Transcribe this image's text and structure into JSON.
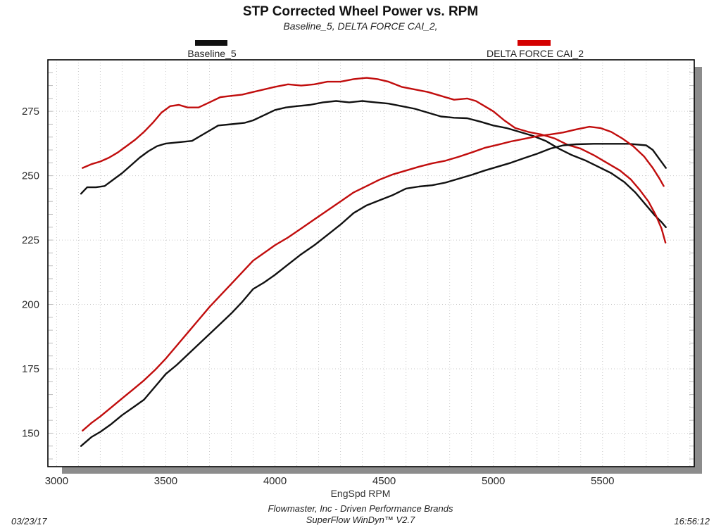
{
  "header": {
    "title": "STP Corrected Wheel Power vs. RPM",
    "subtitle": "Baseline_5, DELTA FORCE CAI_2,"
  },
  "legend": {
    "baseline": {
      "label": "Baseline_5",
      "color": "#111111"
    },
    "cai": {
      "label": "DELTA FORCE CAI_2",
      "color": "#d40000"
    }
  },
  "footer": {
    "brand_line": "Flowmaster, Inc - Driven Performance Brands",
    "software_line": "SuperFlow WinDyn™ V2.7",
    "date": "03/23/17",
    "time": "16:56:12"
  },
  "chart_data": {
    "type": "line",
    "title": "STP Corrected Wheel Power vs. RPM",
    "subtitle": "Baseline_5, DELTA FORCE CAI_2,",
    "xlabel": "EngSpd RPM",
    "ylabel": "",
    "xlim": [
      2960,
      5920
    ],
    "ylim": [
      137,
      295
    ],
    "x_ticks": [
      3000,
      3500,
      4000,
      4500,
      5000,
      5500
    ],
    "y_ticks": [
      150,
      175,
      200,
      225,
      250,
      275
    ],
    "grid": "dotted minor grid: vertical every 100 RPM, horizontal every 25; small edge ticks every 5 units",
    "legend_position": "top, outside plot",
    "frame": "black border with gray drop shadow lower-right",
    "colors": {
      "baseline": "#111111",
      "cai": "#c10d0d",
      "grid": "#c9c9c9",
      "shadow": "#8c8c8c"
    },
    "series": [
      {
        "name": "Baseline_5 torque-curve (upper black)",
        "color": "#111111",
        "points": [
          [
            3112,
            243
          ],
          [
            3140,
            245.5
          ],
          [
            3180,
            245.5
          ],
          [
            3220,
            246
          ],
          [
            3260,
            248.5
          ],
          [
            3300,
            251
          ],
          [
            3340,
            254
          ],
          [
            3380,
            257
          ],
          [
            3420,
            259.5
          ],
          [
            3460,
            261.5
          ],
          [
            3500,
            262.5
          ],
          [
            3560,
            263
          ],
          [
            3620,
            263.5
          ],
          [
            3660,
            265.5
          ],
          [
            3700,
            267.5
          ],
          [
            3740,
            269.5
          ],
          [
            3800,
            270
          ],
          [
            3860,
            270.5
          ],
          [
            3900,
            271.5
          ],
          [
            3950,
            273.5
          ],
          [
            4000,
            275.5
          ],
          [
            4050,
            276.5
          ],
          [
            4100,
            277
          ],
          [
            4160,
            277.5
          ],
          [
            4220,
            278.5
          ],
          [
            4280,
            279
          ],
          [
            4340,
            278.5
          ],
          [
            4400,
            279
          ],
          [
            4460,
            278.5
          ],
          [
            4520,
            278
          ],
          [
            4580,
            277
          ],
          [
            4640,
            276
          ],
          [
            4700,
            274.5
          ],
          [
            4760,
            273
          ],
          [
            4820,
            272.5
          ],
          [
            4880,
            272.3
          ],
          [
            4940,
            271
          ],
          [
            5000,
            269.5
          ],
          [
            5060,
            268.5
          ],
          [
            5120,
            267
          ],
          [
            5180,
            265.5
          ],
          [
            5240,
            263.5
          ],
          [
            5300,
            260.5
          ],
          [
            5360,
            258
          ],
          [
            5420,
            256
          ],
          [
            5480,
            253.5
          ],
          [
            5540,
            251
          ],
          [
            5600,
            247.5
          ],
          [
            5650,
            243.5
          ],
          [
            5700,
            238.5
          ],
          [
            5740,
            234.5
          ],
          [
            5770,
            232
          ],
          [
            5790,
            230
          ]
        ]
      },
      {
        "name": "DELTA FORCE CAI_2 torque-curve (upper red)",
        "color": "#c10d0d",
        "points": [
          [
            3119,
            253
          ],
          [
            3160,
            254.5
          ],
          [
            3200,
            255.5
          ],
          [
            3240,
            257
          ],
          [
            3280,
            259
          ],
          [
            3320,
            261.5
          ],
          [
            3360,
            264
          ],
          [
            3400,
            267
          ],
          [
            3440,
            270.5
          ],
          [
            3480,
            274.5
          ],
          [
            3520,
            277
          ],
          [
            3560,
            277.5
          ],
          [
            3600,
            276.5
          ],
          [
            3650,
            276.5
          ],
          [
            3700,
            278.5
          ],
          [
            3750,
            280.5
          ],
          [
            3800,
            281
          ],
          [
            3850,
            281.5
          ],
          [
            3900,
            282.5
          ],
          [
            3950,
            283.5
          ],
          [
            4000,
            284.5
          ],
          [
            4060,
            285.5
          ],
          [
            4120,
            285
          ],
          [
            4180,
            285.5
          ],
          [
            4240,
            286.5
          ],
          [
            4300,
            286.5
          ],
          [
            4360,
            287.5
          ],
          [
            4420,
            288
          ],
          [
            4470,
            287.5
          ],
          [
            4520,
            286.5
          ],
          [
            4580,
            284.5
          ],
          [
            4640,
            283.5
          ],
          [
            4700,
            282.5
          ],
          [
            4760,
            281
          ],
          [
            4820,
            279.5
          ],
          [
            4880,
            280
          ],
          [
            4920,
            279
          ],
          [
            4960,
            277
          ],
          [
            5000,
            275
          ],
          [
            5050,
            271.5
          ],
          [
            5100,
            268.5
          ],
          [
            5160,
            267
          ],
          [
            5220,
            266
          ],
          [
            5280,
            264.5
          ],
          [
            5340,
            262
          ],
          [
            5400,
            260.5
          ],
          [
            5460,
            258
          ],
          [
            5520,
            255
          ],
          [
            5580,
            252
          ],
          [
            5630,
            248.5
          ],
          [
            5670,
            244.5
          ],
          [
            5710,
            240
          ],
          [
            5745,
            234.5
          ],
          [
            5770,
            229.5
          ],
          [
            5788,
            224
          ]
        ]
      },
      {
        "name": "Baseline_5 power-curve (lower black)",
        "color": "#111111",
        "points": [
          [
            3112,
            145
          ],
          [
            3160,
            148.5
          ],
          [
            3200,
            150.5
          ],
          [
            3250,
            153.5
          ],
          [
            3300,
            157
          ],
          [
            3350,
            160
          ],
          [
            3400,
            163
          ],
          [
            3450,
            168
          ],
          [
            3500,
            173
          ],
          [
            3550,
            176.5
          ],
          [
            3600,
            180.5
          ],
          [
            3650,
            184.5
          ],
          [
            3700,
            188.5
          ],
          [
            3750,
            192.5
          ],
          [
            3800,
            196.5
          ],
          [
            3850,
            201
          ],
          [
            3900,
            206
          ],
          [
            3950,
            208.5
          ],
          [
            4000,
            211.5
          ],
          [
            4060,
            215.5
          ],
          [
            4120,
            219.5
          ],
          [
            4180,
            223
          ],
          [
            4240,
            227
          ],
          [
            4300,
            231
          ],
          [
            4360,
            235.5
          ],
          [
            4420,
            238.5
          ],
          [
            4480,
            240.5
          ],
          [
            4540,
            242.5
          ],
          [
            4600,
            245
          ],
          [
            4660,
            245.8
          ],
          [
            4720,
            246.3
          ],
          [
            4780,
            247.3
          ],
          [
            4840,
            248.8
          ],
          [
            4900,
            250.3
          ],
          [
            4960,
            252
          ],
          [
            5020,
            253.5
          ],
          [
            5080,
            255
          ],
          [
            5140,
            256.8
          ],
          [
            5200,
            258.5
          ],
          [
            5260,
            260.5
          ],
          [
            5320,
            261.8
          ],
          [
            5380,
            262.2
          ],
          [
            5460,
            262.4
          ],
          [
            5540,
            262.4
          ],
          [
            5620,
            262.4
          ],
          [
            5700,
            261.8
          ],
          [
            5730,
            260
          ],
          [
            5760,
            256.5
          ],
          [
            5790,
            253
          ]
        ]
      },
      {
        "name": "DELTA FORCE CAI_2 power-curve (lower red)",
        "color": "#c10d0d",
        "points": [
          [
            3119,
            151
          ],
          [
            3160,
            154
          ],
          [
            3200,
            156.5
          ],
          [
            3250,
            160
          ],
          [
            3300,
            163.5
          ],
          [
            3350,
            167
          ],
          [
            3400,
            170.5
          ],
          [
            3450,
            174.5
          ],
          [
            3500,
            179
          ],
          [
            3550,
            184
          ],
          [
            3600,
            189
          ],
          [
            3650,
            194
          ],
          [
            3700,
            199
          ],
          [
            3750,
            203.5
          ],
          [
            3800,
            208
          ],
          [
            3850,
            212.5
          ],
          [
            3900,
            217
          ],
          [
            3950,
            220
          ],
          [
            4000,
            223
          ],
          [
            4060,
            226
          ],
          [
            4120,
            229.5
          ],
          [
            4180,
            233
          ],
          [
            4240,
            236.5
          ],
          [
            4300,
            240
          ],
          [
            4360,
            243.5
          ],
          [
            4420,
            246
          ],
          [
            4480,
            248.5
          ],
          [
            4540,
            250.5
          ],
          [
            4600,
            252
          ],
          [
            4660,
            253.5
          ],
          [
            4720,
            254.8
          ],
          [
            4780,
            255.8
          ],
          [
            4840,
            257.3
          ],
          [
            4900,
            259
          ],
          [
            4960,
            260.8
          ],
          [
            5020,
            262
          ],
          [
            5080,
            263.3
          ],
          [
            5140,
            264.3
          ],
          [
            5200,
            265.3
          ],
          [
            5260,
            266
          ],
          [
            5320,
            266.8
          ],
          [
            5380,
            268
          ],
          [
            5440,
            269
          ],
          [
            5490,
            268.5
          ],
          [
            5540,
            267
          ],
          [
            5590,
            264.5
          ],
          [
            5640,
            261.5
          ],
          [
            5690,
            257.5
          ],
          [
            5730,
            253
          ],
          [
            5760,
            249
          ],
          [
            5780,
            246
          ]
        ]
      }
    ]
  }
}
